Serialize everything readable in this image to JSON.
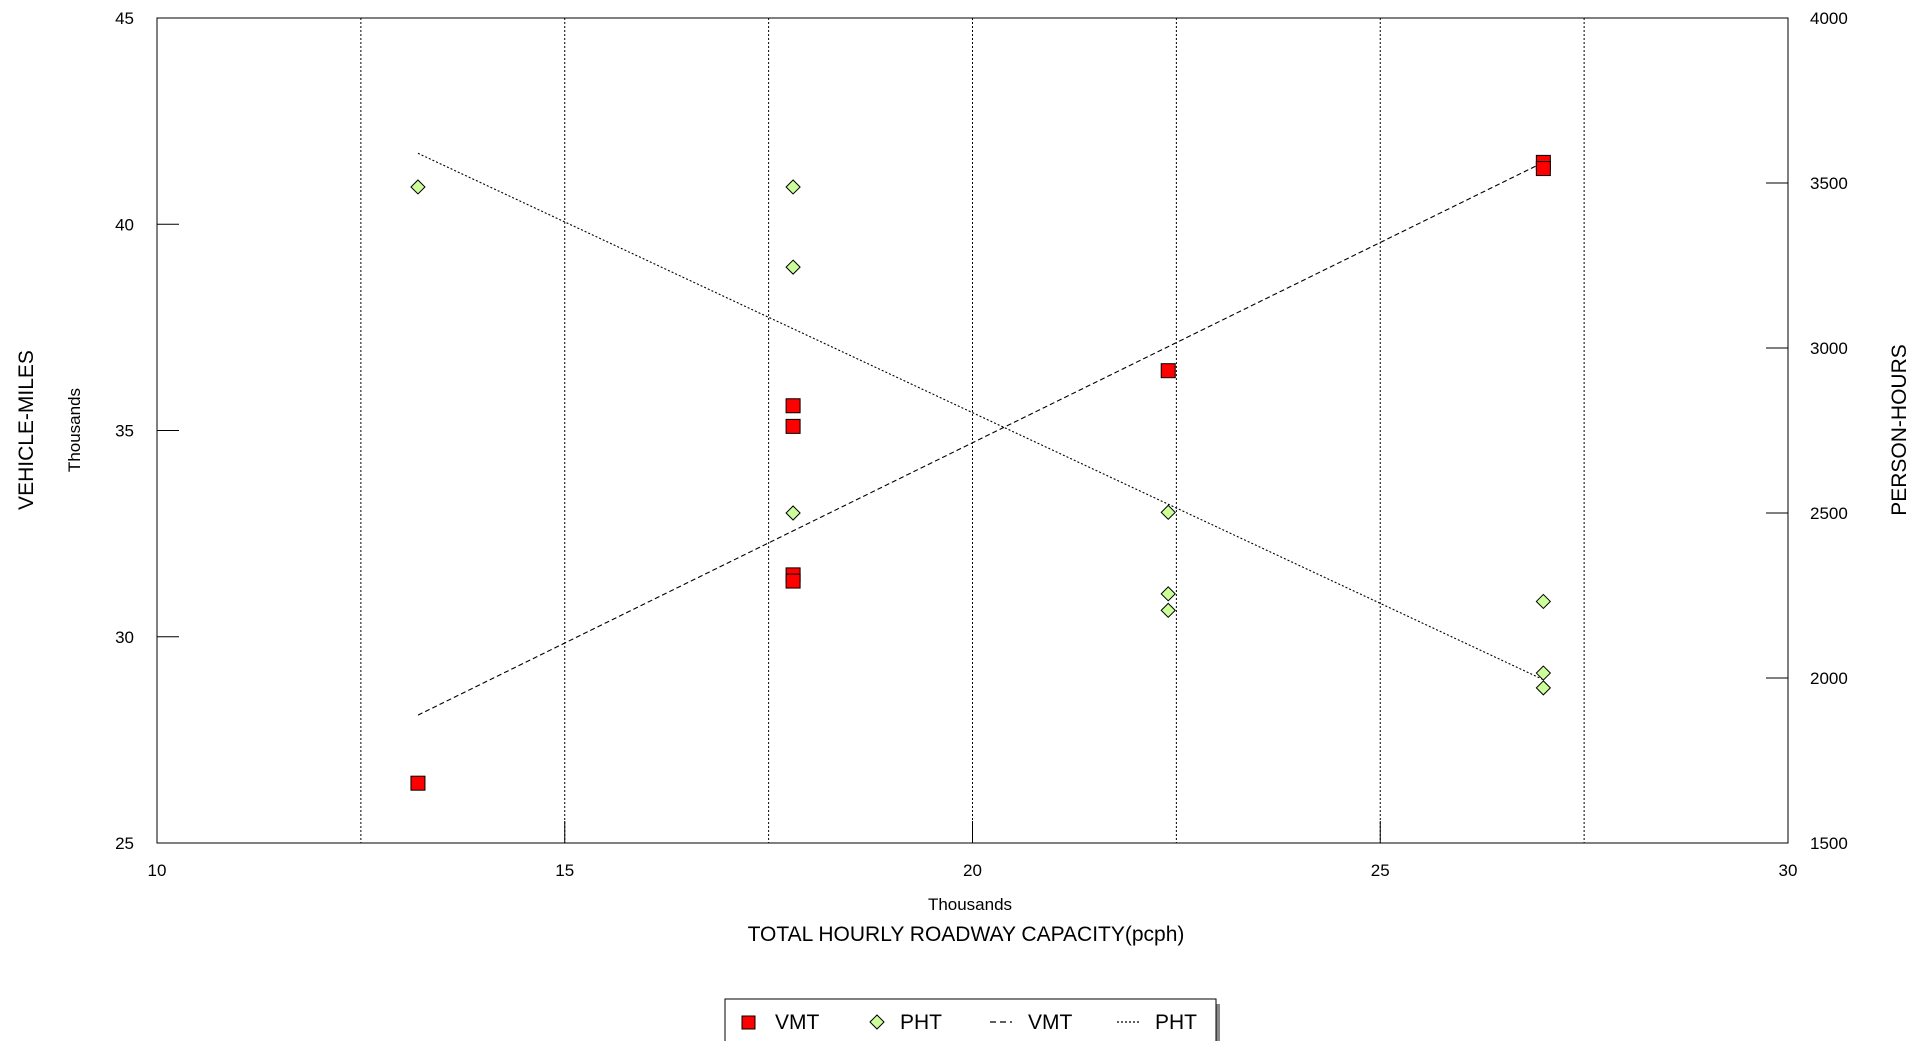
{
  "chart_data": {
    "type": "scatter",
    "x_axis": {
      "label": "TOTAL HOURLY ROADWAY CAPACITY(pcph)",
      "unit_label": "Thousands",
      "range": [
        10,
        30
      ],
      "ticks": [
        10,
        15,
        20,
        25,
        30
      ]
    },
    "y_left": {
      "label": "VEHICLE-MILES",
      "unit_label": "Thousands",
      "range": [
        25,
        45
      ],
      "ticks": [
        25,
        30,
        35,
        40,
        45
      ]
    },
    "y_right": {
      "label": "PERSON-HOURS",
      "range": [
        1500,
        4000
      ],
      "ticks": [
        1500,
        2000,
        2500,
        3000,
        3500,
        4000
      ]
    },
    "vertical_gridlines": [
      12.5,
      15,
      17.5,
      20,
      22.5,
      25,
      27.5
    ],
    "series": [
      {
        "name": "VMT",
        "kind": "scatter",
        "axis": "left",
        "marker": "square",
        "color": "#ff0000",
        "points": [
          [
            13.2,
            26.45
          ],
          [
            17.8,
            35.6
          ],
          [
            17.8,
            35.1
          ],
          [
            17.8,
            31.5
          ],
          [
            17.8,
            31.35
          ],
          [
            22.4,
            36.45
          ],
          [
            27.0,
            41.5
          ],
          [
            27.0,
            41.35
          ]
        ]
      },
      {
        "name": "PHT",
        "kind": "scatter",
        "axis": "right",
        "marker": "diamond",
        "color": "#ccff99",
        "points": [
          [
            13.2,
            3488
          ],
          [
            17.8,
            3488
          ],
          [
            17.8,
            3245
          ],
          [
            17.8,
            2500
          ],
          [
            22.4,
            2502
          ],
          [
            22.4,
            2255
          ],
          [
            22.4,
            2205
          ],
          [
            27.0,
            2232
          ],
          [
            27.0,
            2015
          ],
          [
            27.0,
            1970
          ]
        ]
      },
      {
        "name": "VMT",
        "kind": "line",
        "axis": "left",
        "dash": "dashed",
        "points": [
          [
            13.2,
            28.1
          ],
          [
            27.0,
            41.5
          ]
        ]
      },
      {
        "name": "PHT",
        "kind": "line",
        "axis": "right",
        "dash": "dotted",
        "points": [
          [
            13.2,
            3590
          ],
          [
            27.0,
            1995
          ]
        ]
      }
    ],
    "legend": {
      "placement": "bottom-center",
      "entries": [
        {
          "label": "VMT",
          "symbol": "square"
        },
        {
          "label": "PHT",
          "symbol": "diamond"
        },
        {
          "label": "VMT",
          "symbol": "dashed-line"
        },
        {
          "label": "PHT",
          "symbol": "dotted-line"
        }
      ]
    }
  }
}
